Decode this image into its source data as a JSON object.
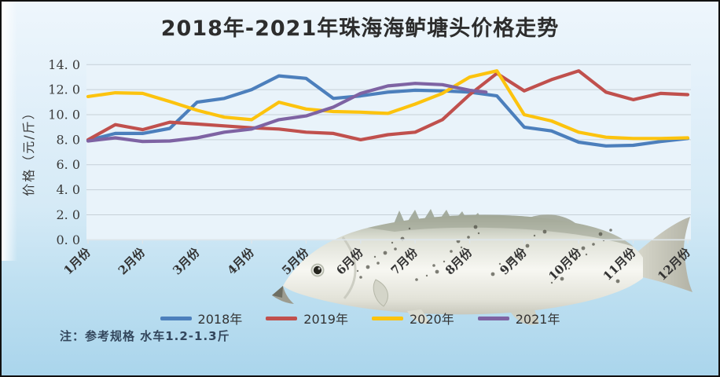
{
  "title": "2018年-2021年珠海海鲈塘头价格走势",
  "note": "注：参考规格  水车1.2-1.3斤",
  "y_axis": {
    "title": "价格（元/斤）",
    "tick_labels": [
      "0. 0",
      "2. 0",
      "4. 0",
      "6. 0",
      "8. 0",
      "10. 0",
      "12. 0",
      "14. 0"
    ],
    "min": 0,
    "max": 14,
    "step": 2
  },
  "x_axis": {
    "tick_labels": [
      "1月份",
      "2月份",
      "3月份",
      "4月份",
      "5月份",
      "6月份",
      "7月份",
      "8月份",
      "9月份",
      "10月份",
      "11月份",
      "12月份"
    ]
  },
  "colors": {
    "plot_bg": "#e9f3fa",
    "gridline": "#c6d0d7",
    "axis_line": "#dde5ea",
    "text": "#3a3a3a"
  },
  "decoration": {
    "fish_image": "sea-bass-photo"
  },
  "chart_data": {
    "type": "line",
    "title": "2018年-2021年珠海海鲈塘头价格走势",
    "ylabel": "价格（元/斤）",
    "ylim": [
      0,
      14
    ],
    "grid": true,
    "legend_position": "bottom",
    "x_unit": "月 (半月间隔)",
    "series": [
      {
        "name": "2018年",
        "color": "#4c7fbc",
        "x": [
          1,
          1.5,
          2,
          2.5,
          3,
          3.5,
          4,
          4.5,
          5,
          5.5,
          6,
          6.5,
          7,
          7.5,
          8,
          8.5,
          9,
          9.5,
          10,
          10.5,
          11,
          11.5,
          12
        ],
        "values": [
          7.95,
          8.5,
          8.5,
          8.9,
          11.0,
          11.3,
          12.0,
          13.1,
          12.9,
          11.3,
          11.5,
          11.8,
          11.95,
          11.9,
          11.8,
          11.5,
          9.0,
          8.7,
          7.8,
          7.5,
          7.55,
          7.85,
          8.1
        ]
      },
      {
        "name": "2019年",
        "color": "#c0504d",
        "x": [
          1,
          1.5,
          2,
          2.5,
          3,
          3.5,
          4,
          4.5,
          5,
          5.5,
          6,
          6.5,
          7,
          7.5,
          8,
          8.5,
          9,
          9.5,
          10,
          10.5,
          11,
          11.5,
          12
        ],
        "values": [
          8.0,
          9.2,
          8.8,
          9.4,
          9.25,
          9.1,
          8.95,
          8.85,
          8.6,
          8.5,
          8.0,
          8.4,
          8.6,
          9.6,
          11.6,
          13.3,
          11.9,
          12.8,
          13.5,
          11.8,
          11.2,
          11.7,
          11.6
        ]
      },
      {
        "name": "2020年",
        "color": "#fcc30e",
        "x": [
          1,
          1.5,
          2,
          2.5,
          3,
          3.5,
          4,
          4.5,
          5,
          5.5,
          6,
          6.5,
          7,
          7.5,
          8,
          8.5,
          9,
          9.5,
          10,
          10.5,
          11,
          11.5,
          12
        ],
        "values": [
          11.45,
          11.75,
          11.7,
          11.05,
          10.35,
          9.8,
          9.6,
          11.0,
          10.45,
          10.25,
          10.2,
          10.1,
          10.85,
          11.7,
          13.0,
          13.5,
          10.0,
          9.5,
          8.6,
          8.2,
          8.1,
          8.1,
          8.15
        ]
      },
      {
        "name": "2021年",
        "color": "#7e63a3",
        "x": [
          1,
          1.5,
          2,
          2.5,
          3,
          3.5,
          4,
          4.5,
          5,
          5.5,
          6,
          6.5,
          7,
          7.5,
          8,
          8.3
        ],
        "values": [
          7.9,
          8.15,
          7.85,
          7.9,
          8.15,
          8.6,
          8.85,
          9.6,
          9.9,
          10.6,
          11.7,
          12.3,
          12.5,
          12.4,
          11.95,
          11.8
        ]
      }
    ]
  }
}
